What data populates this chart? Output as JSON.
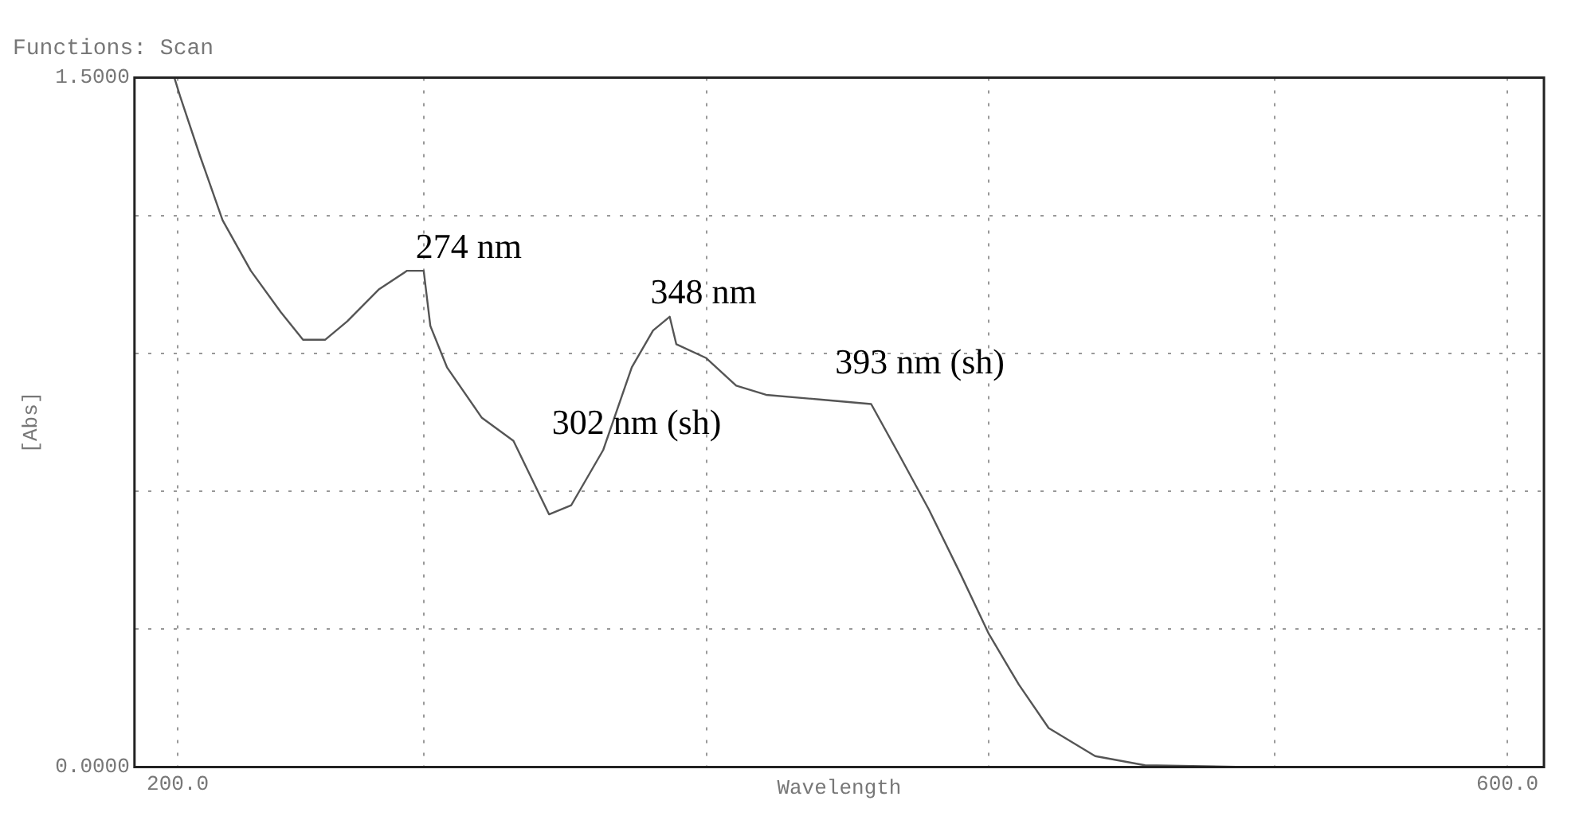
{
  "chart_data": {
    "type": "line",
    "title": "Functions: Scan",
    "xlabel": "Wavelength",
    "ylabel": "[Abs]",
    "x": [
      199,
      200.7,
      206.7,
      213.5,
      222,
      231,
      237.7,
      244.4,
      251,
      260.6,
      269,
      274,
      276,
      281,
      291.5,
      301,
      307.7,
      311.7,
      318.4,
      328,
      336.6,
      343,
      348,
      350,
      359,
      368,
      377,
      393,
      408.6,
      417,
      426,
      435.5,
      444,
      453,
      462,
      476,
      491,
      525,
      611
    ],
    "values": [
      1.5,
      1.46,
      1.33,
      1.19,
      1.08,
      0.99,
      0.93,
      0.93,
      0.97,
      1.04,
      1.08,
      1.08,
      0.96,
      0.87,
      0.76,
      0.71,
      0.61,
      0.55,
      0.57,
      0.69,
      0.87,
      0.95,
      0.98,
      0.92,
      0.89,
      0.83,
      0.81,
      0.8,
      0.79,
      0.68,
      0.56,
      0.42,
      0.29,
      0.18,
      0.085,
      0.024,
      0.004,
      0,
      0
    ],
    "color": "#555555",
    "marker": "none",
    "line_style": "solid",
    "xlim": [
      187,
      611
    ],
    "xticks": [
      {
        "value": 200,
        "label": "200.0"
      },
      {
        "value": 274,
        "label": null
      },
      {
        "value": 359,
        "label": null
      },
      {
        "value": 444,
        "label": null
      },
      {
        "value": 530,
        "label": null
      },
      {
        "value": 600,
        "label": "600.0"
      }
    ],
    "ylim": [
      0,
      1.5
    ],
    "yticks": [
      {
        "value": 0,
        "label": "0.0000"
      },
      {
        "value": 0.3,
        "label": null
      },
      {
        "value": 0.6,
        "label": null
      },
      {
        "value": 0.9,
        "label": null
      },
      {
        "value": 1.2,
        "label": null
      },
      {
        "value": 1.5,
        "label": "1.5000"
      }
    ],
    "grid": true,
    "legend": false,
    "annotations": [
      {
        "text": "274 nm",
        "x": 274,
        "y": 1.08
      },
      {
        "text": "348 nm",
        "x": 348,
        "y": 0.98
      },
      {
        "text": "302 nm (sh)",
        "x": 302,
        "y": 0.71
      },
      {
        "text": "393 nm (sh)",
        "x": 393,
        "y": 0.8
      }
    ]
  }
}
